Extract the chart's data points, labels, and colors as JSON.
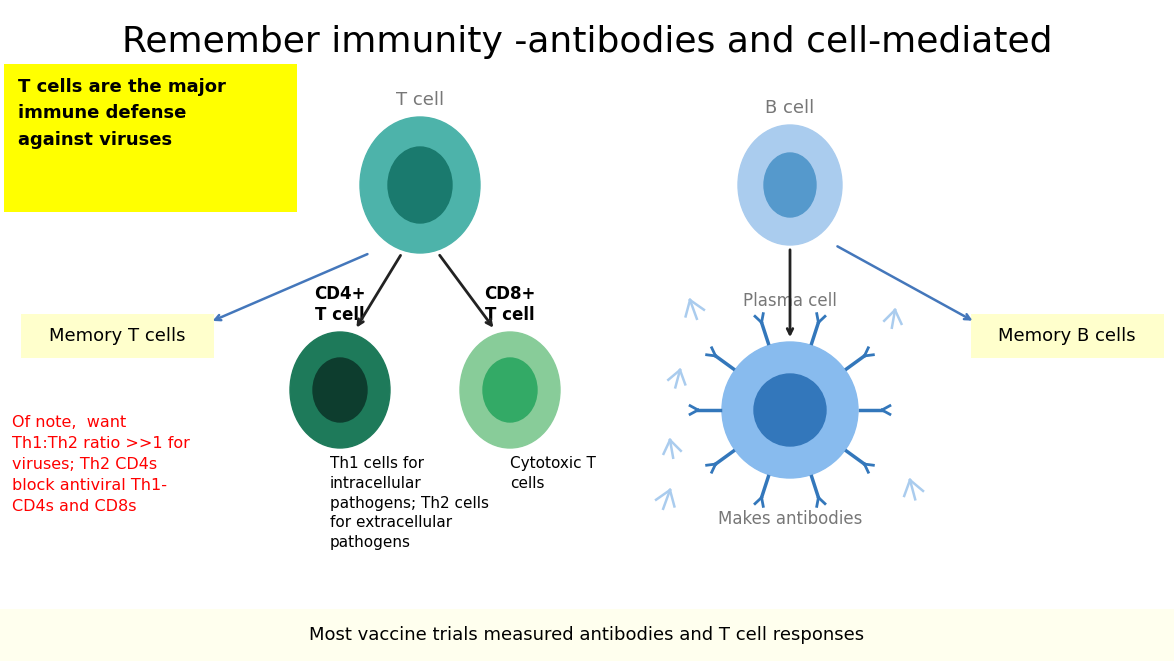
{
  "title": "Remember immunity -antibodies and cell-mediated",
  "title_fontsize": 26,
  "background_color": "#ffffff",
  "bottom_banner_color": "#ffffee",
  "bottom_banner_text": "Most vaccine trials measured antibodies and T cell responses",
  "yellow_box_text": "T cells are the major\nimmune defense\nagainst viruses",
  "yellow_box_color": "#ffff00",
  "red_note_text": "Of note,  want\nTh1:Th2 ratio >>1 for\nviruses; Th2 CD4s\nblock antiviral Th1-\nCD4s and CD8s",
  "memory_t_text": "Memory T cells",
  "memory_b_text": "Memory B cells",
  "t_cell_label": "T cell",
  "b_cell_label": "B cell",
  "cd4_label": "CD4+\nT cell",
  "cd8_label": "CD8+\nT cell",
  "plasma_label": "Plasma cell",
  "makes_ab_label": "Makes antibodies",
  "th1_text": "Th1 cells for\nintracellular\npathogens; Th2 cells\nfor extracellular\npathogens",
  "cytotoxic_text": "Cytotoxic T\ncells",
  "tcell_outer_color": "#4db3aa",
  "tcell_inner_color": "#1a7a6e",
  "cd4_outer_color": "#1e7a5a",
  "cd4_inner_color": "#0d3d2e",
  "cd8_outer_color": "#88cc99",
  "cd8_inner_color": "#33aa66",
  "bcell_outer_color": "#aaccee",
  "bcell_inner_color": "#5599cc",
  "plasma_outer_color": "#88bbee",
  "plasma_inner_color": "#3377bb",
  "antibody_color": "#3377bb",
  "antibody_light_color": "#aaccee",
  "memory_box_color": "#ffffcc",
  "arrow_color_black": "#222222",
  "arrow_color_blue": "#4477bb",
  "label_gray": "#777777"
}
